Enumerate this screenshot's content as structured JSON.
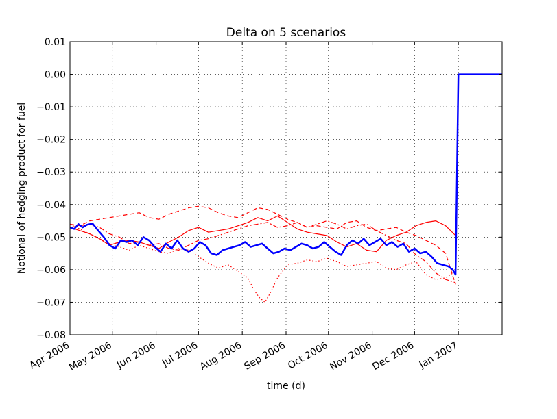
{
  "chart_data": {
    "type": "line",
    "title": "Delta on 5 scenarios",
    "xlabel": "time (d)",
    "ylabel": "Notional of hedging product for fuel",
    "ylim": [
      -0.08,
      0.01
    ],
    "xlim": [
      "2006-04-01",
      "2007-02-01"
    ],
    "grid": true,
    "yticks": [
      0.01,
      0.0,
      -0.01,
      -0.02,
      -0.03,
      -0.04,
      -0.05,
      -0.06,
      -0.07,
      -0.08
    ],
    "ytick_labels": [
      "0.01",
      "0.00",
      "−0.01",
      "−0.02",
      "−0.03",
      "−0.04",
      "−0.05",
      "−0.06",
      "−0.07",
      "−0.08"
    ],
    "xticks": [
      "2006-04-01",
      "2006-05-01",
      "2006-06-01",
      "2006-07-01",
      "2006-08-01",
      "2006-09-01",
      "2006-10-01",
      "2006-11-01",
      "2006-12-01",
      "2007-01-01"
    ],
    "xtick_labels": [
      "Apr 2006",
      "May 2006",
      "Jun 2006",
      "Jul 2006",
      "Aug 2006",
      "Sep 2006",
      "Oct 2006",
      "Nov 2006",
      "Dec 2006",
      "Jan 2007"
    ],
    "series": [
      {
        "color": "#0000ff",
        "style": "solid-thick",
        "x": [
          "2006-04-01",
          "2006-04-04",
          "2006-04-07",
          "2006-04-10",
          "2006-04-13",
          "2006-04-17",
          "2006-04-21",
          "2006-04-25",
          "2006-04-29",
          "2006-05-03",
          "2006-05-07",
          "2006-05-11",
          "2006-05-15",
          "2006-05-19",
          "2006-05-23",
          "2006-05-27",
          "2006-05-31",
          "2006-06-04",
          "2006-06-08",
          "2006-06-12",
          "2006-06-16",
          "2006-06-20",
          "2006-06-24",
          "2006-06-28",
          "2006-07-02",
          "2006-07-06",
          "2006-07-10",
          "2006-07-14",
          "2006-07-18",
          "2006-07-22",
          "2006-07-26",
          "2006-07-30",
          "2006-08-03",
          "2006-08-07",
          "2006-08-11",
          "2006-08-15",
          "2006-08-19",
          "2006-08-23",
          "2006-08-27",
          "2006-08-31",
          "2006-09-04",
          "2006-09-08",
          "2006-09-12",
          "2006-09-16",
          "2006-09-20",
          "2006-09-24",
          "2006-09-28",
          "2006-10-02",
          "2006-10-06",
          "2006-10-10",
          "2006-10-14",
          "2006-10-18",
          "2006-10-22",
          "2006-10-26",
          "2006-10-30",
          "2006-11-03",
          "2006-11-07",
          "2006-11-11",
          "2006-11-15",
          "2006-11-19",
          "2006-11-23",
          "2006-11-27",
          "2006-12-01",
          "2006-12-05",
          "2006-12-09",
          "2006-12-13",
          "2006-12-17",
          "2006-12-21",
          "2006-12-25",
          "2006-12-28",
          "2006-12-30",
          "2007-01-01",
          "2007-02-01"
        ],
        "y": [
          -0.047,
          -0.0475,
          -0.046,
          -0.047,
          -0.0462,
          -0.0458,
          -0.048,
          -0.05,
          -0.0525,
          -0.0535,
          -0.051,
          -0.0515,
          -0.051,
          -0.0525,
          -0.05,
          -0.051,
          -0.053,
          -0.0545,
          -0.052,
          -0.0535,
          -0.051,
          -0.0535,
          -0.0545,
          -0.0535,
          -0.0515,
          -0.0525,
          -0.055,
          -0.0555,
          -0.054,
          -0.0535,
          -0.053,
          -0.0525,
          -0.0515,
          -0.053,
          -0.0525,
          -0.052,
          -0.0535,
          -0.055,
          -0.0545,
          -0.0535,
          -0.054,
          -0.053,
          -0.052,
          -0.0525,
          -0.0535,
          -0.053,
          -0.0515,
          -0.053,
          -0.0545,
          -0.0555,
          -0.0525,
          -0.051,
          -0.052,
          -0.0505,
          -0.0525,
          -0.0515,
          -0.0505,
          -0.0525,
          -0.0515,
          -0.053,
          -0.052,
          -0.0545,
          -0.0535,
          -0.055,
          -0.0545,
          -0.056,
          -0.058,
          -0.0585,
          -0.059,
          -0.06,
          -0.0615,
          0.0,
          0.0
        ]
      },
      {
        "color": "#ff0000",
        "style": "solid",
        "x": [
          "2006-04-01",
          "2006-04-08",
          "2006-04-15",
          "2006-04-22",
          "2006-04-29",
          "2006-05-06",
          "2006-05-13",
          "2006-05-20",
          "2006-05-27",
          "2006-06-03",
          "2006-06-10",
          "2006-06-17",
          "2006-06-24",
          "2006-07-01",
          "2006-07-08",
          "2006-07-15",
          "2006-07-22",
          "2006-07-29",
          "2006-08-05",
          "2006-08-12",
          "2006-08-19",
          "2006-08-26",
          "2006-09-02",
          "2006-09-09",
          "2006-09-16",
          "2006-09-23",
          "2006-09-30",
          "2006-10-07",
          "2006-10-14",
          "2006-10-21",
          "2006-10-28",
          "2006-11-04",
          "2006-11-11",
          "2006-11-18",
          "2006-11-25",
          "2006-12-02",
          "2006-12-09",
          "2006-12-16",
          "2006-12-23",
          "2006-12-30"
        ],
        "y": [
          -0.047,
          -0.048,
          -0.049,
          -0.0505,
          -0.0525,
          -0.0515,
          -0.051,
          -0.0515,
          -0.0525,
          -0.0535,
          -0.0515,
          -0.05,
          -0.048,
          -0.047,
          -0.0485,
          -0.048,
          -0.0475,
          -0.0465,
          -0.0455,
          -0.044,
          -0.045,
          -0.0435,
          -0.0455,
          -0.0475,
          -0.0485,
          -0.049,
          -0.0495,
          -0.0515,
          -0.053,
          -0.052,
          -0.054,
          -0.0545,
          -0.051,
          -0.0495,
          -0.0485,
          -0.0465,
          -0.0455,
          -0.045,
          -0.0465,
          -0.0495
        ]
      },
      {
        "color": "#ff0000",
        "style": "dashed",
        "x": [
          "2006-04-01",
          "2006-04-08",
          "2006-04-15",
          "2006-04-22",
          "2006-04-29",
          "2006-05-06",
          "2006-05-13",
          "2006-05-20",
          "2006-05-27",
          "2006-06-03",
          "2006-06-10",
          "2006-06-17",
          "2006-06-24",
          "2006-07-01",
          "2006-07-08",
          "2006-07-15",
          "2006-07-22",
          "2006-07-29",
          "2006-08-05",
          "2006-08-12",
          "2006-08-19",
          "2006-08-26",
          "2006-09-02",
          "2006-09-09",
          "2006-09-16",
          "2006-09-23",
          "2006-09-30",
          "2006-10-07",
          "2006-10-14",
          "2006-10-21",
          "2006-10-28",
          "2006-11-04",
          "2006-11-11",
          "2006-11-18",
          "2006-11-25",
          "2006-12-02",
          "2006-12-09",
          "2006-12-16",
          "2006-12-23",
          "2006-12-30"
        ],
        "y": [
          -0.046,
          -0.0465,
          -0.045,
          -0.0445,
          -0.044,
          -0.0435,
          -0.043,
          -0.0425,
          -0.044,
          -0.0445,
          -0.043,
          -0.042,
          -0.041,
          -0.0405,
          -0.041,
          -0.0425,
          -0.0435,
          -0.044,
          -0.0425,
          -0.041,
          -0.0415,
          -0.043,
          -0.0445,
          -0.0455,
          -0.047,
          -0.0465,
          -0.047,
          -0.0475,
          -0.0455,
          -0.045,
          -0.047,
          -0.048,
          -0.0475,
          -0.047,
          -0.0485,
          -0.0495,
          -0.051,
          -0.0525,
          -0.055,
          -0.0645
        ]
      },
      {
        "color": "#ff0000",
        "style": "dashdot",
        "x": [
          "2006-04-01",
          "2006-04-08",
          "2006-04-15",
          "2006-04-22",
          "2006-04-29",
          "2006-05-06",
          "2006-05-13",
          "2006-05-20",
          "2006-05-27",
          "2006-06-03",
          "2006-06-10",
          "2006-06-17",
          "2006-06-24",
          "2006-07-01",
          "2006-07-08",
          "2006-07-15",
          "2006-07-22",
          "2006-07-29",
          "2006-08-05",
          "2006-08-12",
          "2006-08-19",
          "2006-08-26",
          "2006-09-02",
          "2006-09-09",
          "2006-09-16",
          "2006-09-23",
          "2006-09-30",
          "2006-10-07",
          "2006-10-14",
          "2006-10-21",
          "2006-10-28",
          "2006-11-04",
          "2006-11-11",
          "2006-11-18",
          "2006-11-25",
          "2006-12-02",
          "2006-12-09",
          "2006-12-16",
          "2006-12-23",
          "2006-12-30"
        ],
        "y": [
          -0.047,
          -0.0465,
          -0.046,
          -0.047,
          -0.049,
          -0.05,
          -0.052,
          -0.0515,
          -0.0525,
          -0.052,
          -0.0535,
          -0.054,
          -0.0525,
          -0.051,
          -0.0505,
          -0.0495,
          -0.0485,
          -0.0475,
          -0.0465,
          -0.046,
          -0.0455,
          -0.047,
          -0.0465,
          -0.0455,
          -0.047,
          -0.046,
          -0.045,
          -0.046,
          -0.0475,
          -0.0465,
          -0.046,
          -0.048,
          -0.0495,
          -0.051,
          -0.052,
          -0.0555,
          -0.0575,
          -0.061,
          -0.063,
          -0.064
        ]
      },
      {
        "color": "#ff0000",
        "style": "dotted",
        "x": [
          "2006-04-01",
          "2006-04-08",
          "2006-04-15",
          "2006-04-22",
          "2006-04-29",
          "2006-05-06",
          "2006-05-13",
          "2006-05-20",
          "2006-05-27",
          "2006-06-03",
          "2006-06-10",
          "2006-06-17",
          "2006-06-24",
          "2006-07-01",
          "2006-07-08",
          "2006-07-15",
          "2006-07-22",
          "2006-07-29",
          "2006-08-05",
          "2006-08-09",
          "2006-08-13",
          "2006-08-17",
          "2006-08-21",
          "2006-08-26",
          "2006-09-02",
          "2006-09-09",
          "2006-09-16",
          "2006-09-23",
          "2006-09-30",
          "2006-10-07",
          "2006-10-14",
          "2006-10-21",
          "2006-10-28",
          "2006-11-04",
          "2006-11-11",
          "2006-11-18",
          "2006-11-25",
          "2006-12-02",
          "2006-12-09",
          "2006-12-16",
          "2006-12-23",
          "2006-12-30"
        ],
        "y": [
          -0.046,
          -0.0475,
          -0.049,
          -0.0505,
          -0.052,
          -0.053,
          -0.054,
          -0.0525,
          -0.0535,
          -0.0545,
          -0.055,
          -0.0535,
          -0.054,
          -0.056,
          -0.058,
          -0.0595,
          -0.0585,
          -0.0605,
          -0.0625,
          -0.066,
          -0.0685,
          -0.07,
          -0.067,
          -0.0625,
          -0.0585,
          -0.058,
          -0.057,
          -0.0575,
          -0.0565,
          -0.0575,
          -0.059,
          -0.0585,
          -0.058,
          -0.0575,
          -0.0595,
          -0.06,
          -0.0585,
          -0.0575,
          -0.0615,
          -0.063,
          -0.0625,
          -0.0605
        ]
      }
    ]
  }
}
